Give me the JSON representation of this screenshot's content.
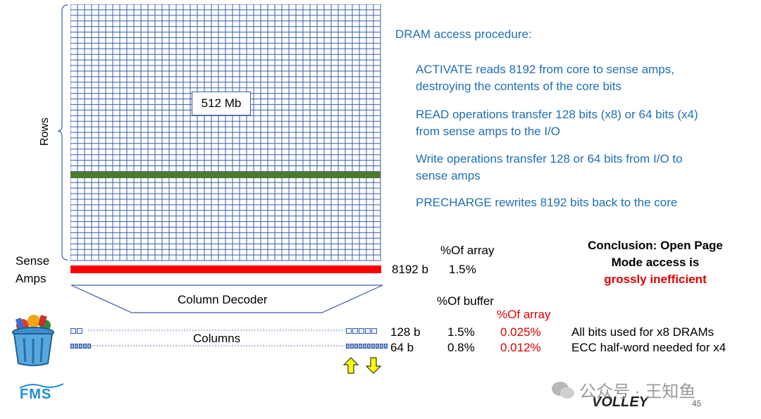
{
  "grid": {
    "label": "512 Mb",
    "rows_label": "Rows"
  },
  "sense_amps": {
    "label_line1": "Sense",
    "label_line2": "Amps",
    "bits": "8192 b",
    "pct_of_array": "1.5%"
  },
  "column_decoder": {
    "label": "Column Decoder"
  },
  "columns": {
    "label": "Columns"
  },
  "headers": {
    "of_array": "%Of array",
    "of_buffer": "%Of buffer",
    "of_array_red": "%Of array"
  },
  "rows": [
    {
      "bits": "128 b",
      "buffer": "1.5%",
      "array": "0.025%",
      "note": "All bits used for x8 DRAMs"
    },
    {
      "bits": "64 b",
      "buffer": "0.8%",
      "array": "0.012%",
      "note": "ECC half-word needed for x4"
    }
  ],
  "procedure": {
    "title": "DRAM access procedure:",
    "steps": [
      {
        "line1": "ACTIVATE reads 8192 from core to sense amps,",
        "line2": "destroying the contents of the core bits"
      },
      {
        "line1": "READ operations transfer 128 bits (x8) or 64 bits (x4)",
        "line2": "from sense amps to the I/O"
      },
      {
        "line1": "Write operations transfer 128 or 64 bits from I/O to",
        "line2": "sense amps"
      },
      {
        "line1": "PRECHARGE rewrites 8192 bits back to the core",
        "line2": ""
      }
    ]
  },
  "conclusion": {
    "line1": "Conclusion: Open Page",
    "line2": "Mode access is",
    "line3": "grossly inefficient"
  },
  "footer": {
    "logo_left": "FMS",
    "logo_right": "VOLLEY",
    "watermark": "公众号 · 王知鱼",
    "page": "45"
  },
  "colors": {
    "grid": "#3a5da8",
    "highlight_row": "#4a7a2a",
    "sense_bar": "#ff0000",
    "procedure_text": "#1f6fb5",
    "arrow_fill": "#ffff00",
    "conclusion_red": "#e00000"
  }
}
